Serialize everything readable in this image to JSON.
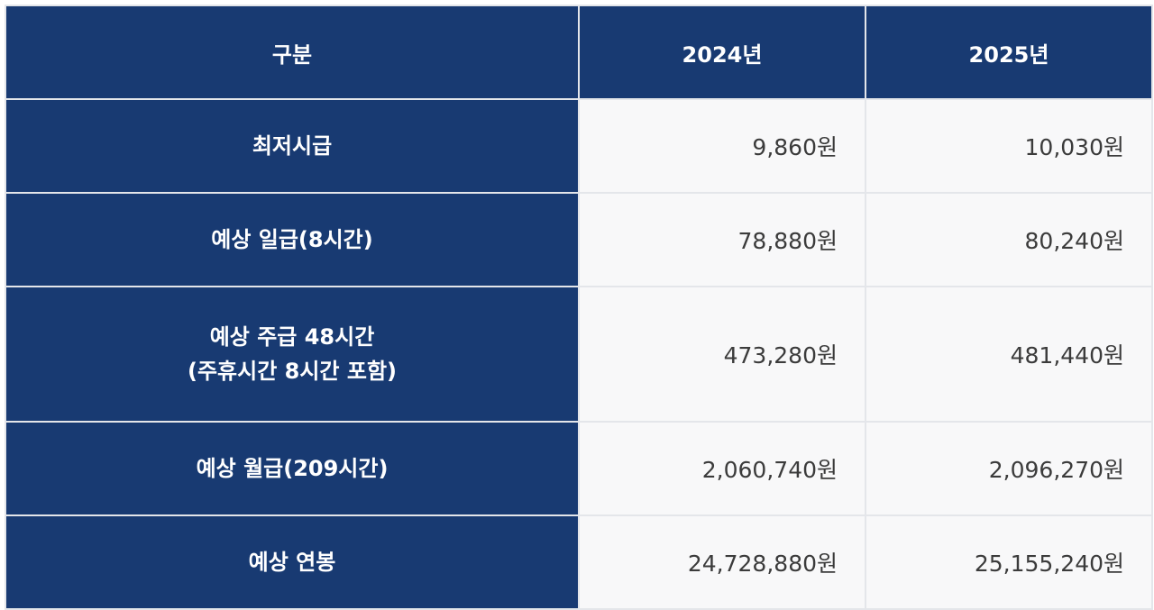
{
  "table": {
    "headers": [
      "구분",
      "2024년",
      "2025년"
    ],
    "rows": [
      {
        "label": [
          "최저시급"
        ],
        "v2024": "9,860원",
        "v2025": "10,030원"
      },
      {
        "label": [
          "예상 일급(8시간)"
        ],
        "v2024": "78,880원",
        "v2025": "80,240원"
      },
      {
        "label": [
          "예상 주급 48시간",
          "(주휴시간 8시간 포함)"
        ],
        "v2024": "473,280원",
        "v2025": "481,440원"
      },
      {
        "label": [
          "예상 월급(209시간)"
        ],
        "v2024": "2,060,740원",
        "v2025": "2,096,270원"
      },
      {
        "label": [
          "예상 연봉"
        ],
        "v2024": "24,728,880원",
        "v2025": "25,155,240원"
      }
    ]
  },
  "colors": {
    "header_bg": "#183a72",
    "cell_bg": "#f8f8f9",
    "border": "#e4e6ea",
    "value_text": "#3b3b3b"
  }
}
